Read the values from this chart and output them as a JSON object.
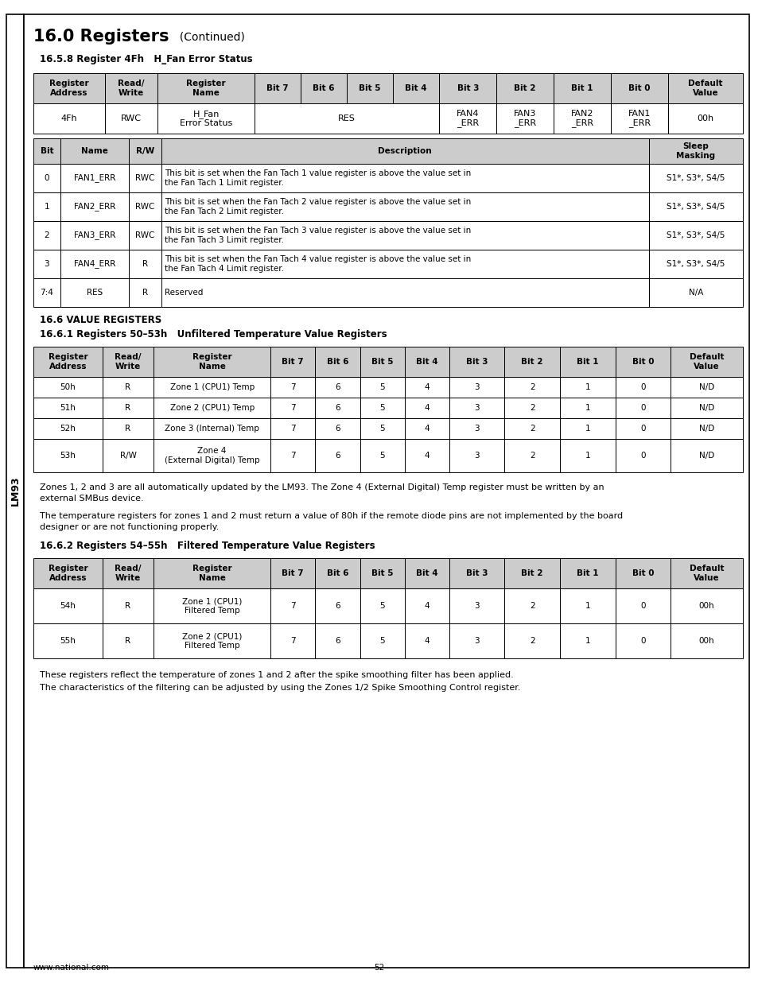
{
  "title_bold": "16.0 Registers",
  "title_normal": "  (Continued)",
  "section1_title": "16.5.8 Register 4Fh   H_Fan Error Status",
  "section2_title": "16.6 VALUE REGISTERS",
  "section3_title": "16.6.1 Registers 50–53h   Unfiltered Temperature Value Registers",
  "section4_title": "16.6.2 Registers 54–55h   Filtered Temperature Value Registers",
  "sidebar_text": "LM93",
  "footer_left": "www.national.com",
  "footer_center": "52",
  "para1_line1": "Zones 1, 2 and 3 are all automatically updated by the LM93. The Zone 4 (External Digital) Temp register must be written by an",
  "para1_line2": "external SMBus device.",
  "para2_line1": "The temperature registers for zones 1 and 2 must return a value of 80h if the remote diode pins are not implemented by the board",
  "para2_line2": "designer or are not functioning properly.",
  "para3": "These registers reflect the temperature of zones 1 and 2 after the spike smoothing filter has been applied.",
  "para4": "The characteristics of the filtering can be adjusted by using the Zones 1/2 Spike Smoothing Control register.",
  "bg_color": "#ffffff",
  "header_bg": "#cccccc"
}
